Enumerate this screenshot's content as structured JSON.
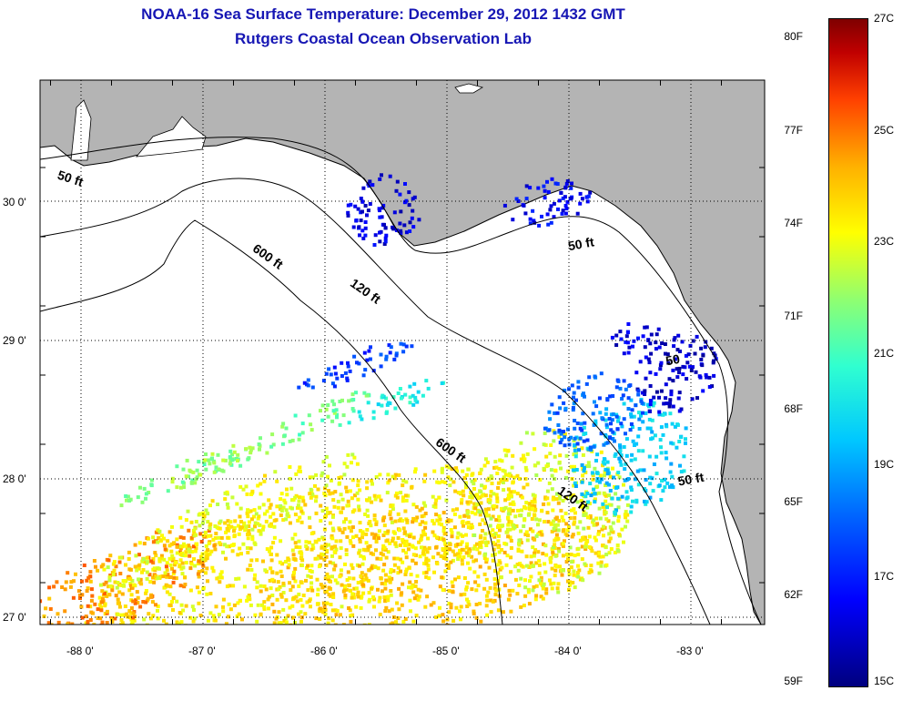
{
  "title": {
    "line1": "NOAA-16 Sea Surface Temperature:  December 29, 2012 1432 GMT",
    "line2": "Rutgers Coastal Ocean Observation Lab"
  },
  "axes": {
    "x_ticks": [
      {
        "value": -88,
        "label": "-88 0'"
      },
      {
        "value": -87,
        "label": "-87 0'"
      },
      {
        "value": -86,
        "label": "-86 0'"
      },
      {
        "value": -85,
        "label": "-85 0'"
      },
      {
        "value": -84,
        "label": "-84 0'"
      },
      {
        "value": -83,
        "label": "-83 0'"
      }
    ],
    "y_ticks": [
      {
        "value": 30,
        "label": "30 0'"
      },
      {
        "value": 29,
        "label": "29 0'"
      },
      {
        "value": 28,
        "label": "28 0'"
      },
      {
        "value": 27,
        "label": "27 0'"
      }
    ]
  },
  "contour_labels": [
    {
      "text": "50 ft",
      "lon": -88.2,
      "lat": 30.17
    },
    {
      "text": "600 ft",
      "lon": -86.6,
      "lat": 29.65
    },
    {
      "text": "120 ft",
      "lon": -85.8,
      "lat": 29.4
    },
    {
      "text": "50 ft",
      "lon": -84.0,
      "lat": 29.65
    },
    {
      "text": "600 ft",
      "lon": -85.1,
      "lat": 28.25
    },
    {
      "text": "120 ft",
      "lon": -84.1,
      "lat": 27.9
    },
    {
      "text": "50 ft",
      "lon": -83.1,
      "lat": 27.95
    },
    {
      "text": "50",
      "lon": -83.2,
      "lat": 28.82
    }
  ],
  "colorbar": {
    "left_labels": [
      "80F",
      "77F",
      "74F",
      "71F",
      "68F",
      "65F",
      "62F",
      "59F"
    ],
    "right_labels": [
      "27C",
      "25C",
      "23C",
      "21C",
      "19C",
      "17C",
      "15C"
    ],
    "f_values": [
      80,
      77,
      74,
      71,
      68,
      65,
      62,
      59
    ],
    "c_values": [
      27,
      25,
      23,
      21,
      19,
      17,
      15
    ],
    "min_f": 59,
    "max_f": 80.6
  }
}
